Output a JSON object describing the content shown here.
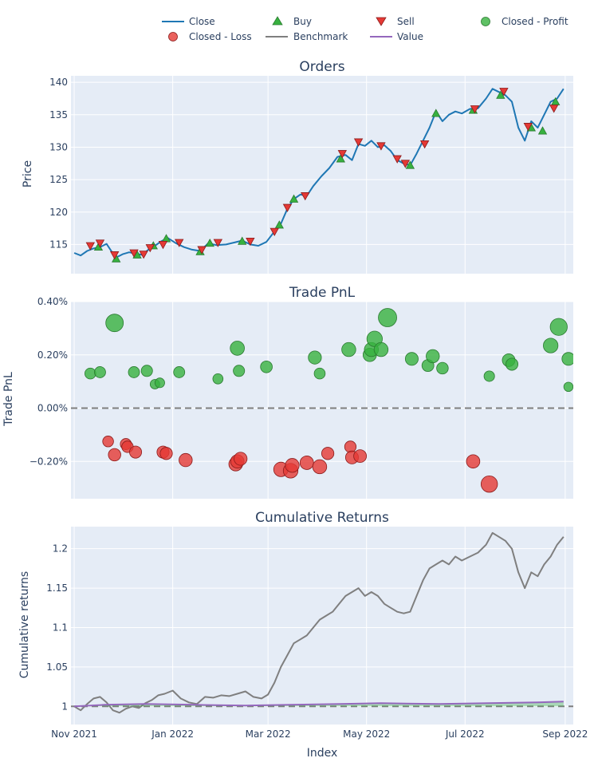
{
  "chart_data": {
    "type": "line",
    "legend": {
      "placement": "top",
      "entries": [
        "Close",
        "Buy",
        "Sell",
        "Closed - Profit",
        "Closed - Loss",
        "Benchmark",
        "Value"
      ]
    },
    "colors": {
      "close": "#1f77b4",
      "buy": "#37b13f",
      "sell": "#e53935",
      "profit": "#37b13f",
      "loss": "#e53935",
      "benchmark": "#7f7f7f",
      "value": "#9467bd",
      "plot_bg": "#e5ecf6",
      "grid": "#ffffff",
      "text": "#2a3f5f"
    },
    "x_axis": {
      "label": "Index",
      "tick_labels": [
        "Nov 2021",
        "Jan 2022",
        "Mar 2022",
        "May 2022",
        "Jul 2022",
        "Sep 2022"
      ],
      "tick_dates": [
        "2021-11-01",
        "2022-01-01",
        "2022-03-01",
        "2022-05-01",
        "2022-07-01",
        "2022-09-01"
      ],
      "range": [
        "2021-10-30",
        "2022-09-06"
      ]
    },
    "panels": [
      {
        "title": "Orders",
        "ylabel": "Price",
        "ylim": [
          110.5,
          141
        ],
        "yticks": [
          115,
          120,
          125,
          130,
          135,
          140
        ],
        "ytick_labels": [
          "115",
          "120",
          "125",
          "130",
          "135",
          "140"
        ],
        "grid": true,
        "close": [
          [
            "2021-11-01",
            113.7
          ],
          [
            "2021-11-05",
            113.3
          ],
          [
            "2021-11-09",
            114.0
          ],
          [
            "2021-11-13",
            114.4
          ],
          [
            "2021-11-17",
            114.6
          ],
          [
            "2021-11-21",
            115.1
          ],
          [
            "2021-11-25",
            113.6
          ],
          [
            "2021-11-27",
            113.0
          ],
          [
            "2021-12-01",
            113.5
          ],
          [
            "2021-12-05",
            113.8
          ],
          [
            "2021-12-09",
            113.6
          ],
          [
            "2021-12-13",
            113.4
          ],
          [
            "2021-12-17",
            114.2
          ],
          [
            "2021-12-21",
            114.8
          ],
          [
            "2021-12-25",
            115.5
          ],
          [
            "2021-12-29",
            116.0
          ],
          [
            "2022-01-03",
            115.2
          ],
          [
            "2022-01-08",
            114.6
          ],
          [
            "2022-01-13",
            114.2
          ],
          [
            "2022-01-18",
            114.0
          ],
          [
            "2022-01-23",
            115.2
          ],
          [
            "2022-01-28",
            114.9
          ],
          [
            "2022-02-03",
            115.0
          ],
          [
            "2022-02-08",
            115.3
          ],
          [
            "2022-02-13",
            115.6
          ],
          [
            "2022-02-18",
            115.0
          ],
          [
            "2022-02-23",
            114.8
          ],
          [
            "2022-02-28",
            115.4
          ],
          [
            "2022-03-05",
            117.0
          ],
          [
            "2022-03-09",
            118.2
          ],
          [
            "2022-03-13",
            120.5
          ],
          [
            "2022-03-17",
            122.0
          ],
          [
            "2022-03-21",
            122.7
          ],
          [
            "2022-03-25",
            122.5
          ],
          [
            "2022-03-29",
            124.0
          ],
          [
            "2022-04-03",
            125.5
          ],
          [
            "2022-04-08",
            126.8
          ],
          [
            "2022-04-13",
            128.5
          ],
          [
            "2022-04-18",
            128.8
          ],
          [
            "2022-04-22",
            128.0
          ],
          [
            "2022-04-26",
            130.5
          ],
          [
            "2022-04-30",
            130.2
          ],
          [
            "2022-05-04",
            131.0
          ],
          [
            "2022-05-08",
            130.0
          ],
          [
            "2022-05-12",
            130.3
          ],
          [
            "2022-05-16",
            129.4
          ],
          [
            "2022-05-20",
            128.0
          ],
          [
            "2022-05-24",
            127.5
          ],
          [
            "2022-05-28",
            127.2
          ],
          [
            "2022-06-01",
            129.0
          ],
          [
            "2022-06-05",
            131.0
          ],
          [
            "2022-06-09",
            133.0
          ],
          [
            "2022-06-13",
            135.5
          ],
          [
            "2022-06-17",
            134.0
          ],
          [
            "2022-06-21",
            135.0
          ],
          [
            "2022-06-25",
            135.5
          ],
          [
            "2022-06-29",
            135.2
          ],
          [
            "2022-07-04",
            135.9
          ],
          [
            "2022-07-09",
            136.0
          ],
          [
            "2022-07-14",
            137.5
          ],
          [
            "2022-07-18",
            139.0
          ],
          [
            "2022-07-22",
            138.5
          ],
          [
            "2022-07-26",
            138.0
          ],
          [
            "2022-07-30",
            137.0
          ],
          [
            "2022-08-03",
            133.0
          ],
          [
            "2022-08-07",
            131.0
          ],
          [
            "2022-08-11",
            134.0
          ],
          [
            "2022-08-15",
            133.0
          ],
          [
            "2022-08-19",
            135.0
          ],
          [
            "2022-08-23",
            137.0
          ],
          [
            "2022-08-27",
            137.5
          ],
          [
            "2022-08-31",
            139.0
          ]
        ],
        "buy": [
          [
            "2021-11-16",
            114.6
          ],
          [
            "2021-11-27",
            112.8
          ],
          [
            "2021-12-10",
            113.4
          ],
          [
            "2021-12-20",
            114.8
          ],
          [
            "2021-12-28",
            115.9
          ],
          [
            "2022-01-18",
            113.9
          ],
          [
            "2022-01-24",
            115.2
          ],
          [
            "2022-02-13",
            115.5
          ],
          [
            "2022-03-08",
            118.0
          ],
          [
            "2022-03-17",
            122.0
          ],
          [
            "2022-04-15",
            128.2
          ],
          [
            "2022-05-28",
            127.2
          ],
          [
            "2022-06-13",
            135.2
          ],
          [
            "2022-07-06",
            135.7
          ],
          [
            "2022-07-23",
            138.0
          ],
          [
            "2022-08-11",
            133.0
          ],
          [
            "2022-08-18",
            132.5
          ],
          [
            "2022-08-26",
            137.0
          ]
        ],
        "sell": [
          [
            "2021-11-11",
            114.8
          ],
          [
            "2021-11-17",
            115.2
          ],
          [
            "2021-11-26",
            113.4
          ],
          [
            "2021-12-08",
            113.7
          ],
          [
            "2021-12-14",
            113.5
          ],
          [
            "2021-12-18",
            114.5
          ],
          [
            "2021-12-26",
            115.0
          ],
          [
            "2022-01-05",
            115.3
          ],
          [
            "2022-01-19",
            114.2
          ],
          [
            "2022-01-29",
            115.3
          ],
          [
            "2022-02-18",
            115.5
          ],
          [
            "2022-03-05",
            117.0
          ],
          [
            "2022-03-13",
            120.7
          ],
          [
            "2022-03-24",
            122.5
          ],
          [
            "2022-04-16",
            129.0
          ],
          [
            "2022-04-26",
            130.8
          ],
          [
            "2022-05-10",
            130.2
          ],
          [
            "2022-05-20",
            128.2
          ],
          [
            "2022-05-25",
            127.5
          ],
          [
            "2022-06-06",
            130.5
          ],
          [
            "2022-07-07",
            135.9
          ],
          [
            "2022-07-25",
            138.6
          ],
          [
            "2022-08-09",
            133.2
          ],
          [
            "2022-08-25",
            136.0
          ]
        ]
      },
      {
        "title": "Trade PnL",
        "ylabel": "Trade PnL",
        "ylim": [
          -0.34,
          0.4
        ],
        "yticks": [
          -0.2,
          0.0,
          0.2,
          0.4
        ],
        "ytick_labels": [
          "−0.20%",
          "0.00%",
          "0.20%",
          "0.40%"
        ],
        "zero_line": true,
        "profit": [
          [
            "2021-11-11",
            0.13
          ],
          [
            "2021-11-17",
            0.135
          ],
          [
            "2021-11-26",
            0.32
          ],
          [
            "2021-12-08",
            0.135
          ],
          [
            "2021-12-16",
            0.14
          ],
          [
            "2021-12-21",
            0.09
          ],
          [
            "2021-12-24",
            0.095
          ],
          [
            "2022-01-05",
            0.135
          ],
          [
            "2022-01-29",
            0.11
          ],
          [
            "2022-02-10",
            0.225
          ],
          [
            "2022-02-11",
            0.14
          ],
          [
            "2022-02-28",
            0.155
          ],
          [
            "2022-03-30",
            0.19
          ],
          [
            "2022-04-02",
            0.13
          ],
          [
            "2022-04-20",
            0.22
          ],
          [
            "2022-05-03",
            0.2
          ],
          [
            "2022-05-04",
            0.22
          ],
          [
            "2022-05-06",
            0.26
          ],
          [
            "2022-05-10",
            0.22
          ],
          [
            "2022-05-14",
            0.34
          ],
          [
            "2022-05-29",
            0.185
          ],
          [
            "2022-06-08",
            0.16
          ],
          [
            "2022-06-11",
            0.195
          ],
          [
            "2022-06-17",
            0.15
          ],
          [
            "2022-07-16",
            0.12
          ],
          [
            "2022-07-28",
            0.18
          ],
          [
            "2022-07-30",
            0.165
          ],
          [
            "2022-08-23",
            0.235
          ],
          [
            "2022-08-28",
            0.305
          ],
          [
            "2022-09-03",
            0.185
          ],
          [
            "2022-09-03",
            0.08
          ]
        ],
        "loss": [
          [
            "2021-11-22",
            -0.125
          ],
          [
            "2021-11-26",
            -0.175
          ],
          [
            "2021-12-03",
            -0.135
          ],
          [
            "2021-12-04",
            -0.145
          ],
          [
            "2021-12-09",
            -0.165
          ],
          [
            "2021-12-26",
            -0.165
          ],
          [
            "2021-12-28",
            -0.17
          ],
          [
            "2022-01-09",
            -0.195
          ],
          [
            "2022-02-09",
            -0.21
          ],
          [
            "2022-02-10",
            -0.2
          ],
          [
            "2022-02-12",
            -0.19
          ],
          [
            "2022-03-09",
            -0.23
          ],
          [
            "2022-03-15",
            -0.235
          ],
          [
            "2022-03-16",
            -0.215
          ],
          [
            "2022-03-25",
            -0.205
          ],
          [
            "2022-04-02",
            -0.22
          ],
          [
            "2022-04-07",
            -0.17
          ],
          [
            "2022-04-21",
            -0.145
          ],
          [
            "2022-04-22",
            -0.185
          ],
          [
            "2022-04-27",
            -0.18
          ],
          [
            "2022-07-06",
            -0.2
          ],
          [
            "2022-07-16",
            -0.285
          ]
        ]
      },
      {
        "title": "Cumulative Returns",
        "ylabel": "Cumulative returns",
        "ylim": [
          0.977,
          1.228
        ],
        "yticks": [
          1.0,
          1.05,
          1.1,
          1.15,
          1.2
        ],
        "ytick_labels": [
          "1",
          "1.05",
          "1.1",
          "1.15",
          "1.2"
        ],
        "baseline": 1.0,
        "benchmark": [
          [
            "2021-11-01",
            1.0
          ],
          [
            "2021-11-05",
            0.995
          ],
          [
            "2021-11-09",
            1.003
          ],
          [
            "2021-11-13",
            1.01
          ],
          [
            "2021-11-17",
            1.012
          ],
          [
            "2021-11-21",
            1.005
          ],
          [
            "2021-11-25",
            0.995
          ],
          [
            "2021-11-29",
            0.992
          ],
          [
            "2021-12-03",
            0.997
          ],
          [
            "2021-12-07",
            1.0
          ],
          [
            "2021-12-11",
            0.998
          ],
          [
            "2021-12-15",
            1.004
          ],
          [
            "2021-12-19",
            1.008
          ],
          [
            "2021-12-23",
            1.014
          ],
          [
            "2021-12-27",
            1.016
          ],
          [
            "2022-01-01",
            1.02
          ],
          [
            "2022-01-06",
            1.01
          ],
          [
            "2022-01-11",
            1.005
          ],
          [
            "2022-01-16",
            1.003
          ],
          [
            "2022-01-21",
            1.012
          ],
          [
            "2022-01-26",
            1.011
          ],
          [
            "2022-01-31",
            1.014
          ],
          [
            "2022-02-05",
            1.013
          ],
          [
            "2022-02-10",
            1.016
          ],
          [
            "2022-02-15",
            1.019
          ],
          [
            "2022-02-20",
            1.012
          ],
          [
            "2022-02-25",
            1.01
          ],
          [
            "2022-03-01",
            1.015
          ],
          [
            "2022-03-05",
            1.03
          ],
          [
            "2022-03-09",
            1.05
          ],
          [
            "2022-03-13",
            1.065
          ],
          [
            "2022-03-17",
            1.08
          ],
          [
            "2022-03-21",
            1.085
          ],
          [
            "2022-03-25",
            1.09
          ],
          [
            "2022-03-29",
            1.1
          ],
          [
            "2022-04-02",
            1.11
          ],
          [
            "2022-04-06",
            1.115
          ],
          [
            "2022-04-10",
            1.12
          ],
          [
            "2022-04-14",
            1.13
          ],
          [
            "2022-04-18",
            1.14
          ],
          [
            "2022-04-22",
            1.145
          ],
          [
            "2022-04-26",
            1.15
          ],
          [
            "2022-04-30",
            1.14
          ],
          [
            "2022-05-04",
            1.145
          ],
          [
            "2022-05-08",
            1.14
          ],
          [
            "2022-05-12",
            1.13
          ],
          [
            "2022-05-16",
            1.125
          ],
          [
            "2022-05-20",
            1.12
          ],
          [
            "2022-05-24",
            1.118
          ],
          [
            "2022-05-28",
            1.12
          ],
          [
            "2022-06-01",
            1.14
          ],
          [
            "2022-06-05",
            1.16
          ],
          [
            "2022-06-09",
            1.175
          ],
          [
            "2022-06-13",
            1.18
          ],
          [
            "2022-06-17",
            1.185
          ],
          [
            "2022-06-21",
            1.18
          ],
          [
            "2022-06-25",
            1.19
          ],
          [
            "2022-06-29",
            1.185
          ],
          [
            "2022-07-04",
            1.19
          ],
          [
            "2022-07-09",
            1.195
          ],
          [
            "2022-07-14",
            1.205
          ],
          [
            "2022-07-18",
            1.22
          ],
          [
            "2022-07-22",
            1.215
          ],
          [
            "2022-07-26",
            1.21
          ],
          [
            "2022-07-30",
            1.2
          ],
          [
            "2022-08-03",
            1.17
          ],
          [
            "2022-08-07",
            1.15
          ],
          [
            "2022-08-11",
            1.17
          ],
          [
            "2022-08-15",
            1.165
          ],
          [
            "2022-08-19",
            1.18
          ],
          [
            "2022-08-23",
            1.19
          ],
          [
            "2022-08-27",
            1.205
          ],
          [
            "2022-08-31",
            1.215
          ]
        ],
        "value": [
          [
            "2021-11-01",
            1.0
          ],
          [
            "2021-11-20",
            1.002
          ],
          [
            "2021-12-15",
            1.003
          ],
          [
            "2022-01-15",
            1.002
          ],
          [
            "2022-02-15",
            1.001
          ],
          [
            "2022-03-15",
            1.002
          ],
          [
            "2022-04-15",
            1.003
          ],
          [
            "2022-05-10",
            1.004
          ],
          [
            "2022-06-15",
            1.003
          ],
          [
            "2022-07-15",
            1.004
          ],
          [
            "2022-08-15",
            1.005
          ],
          [
            "2022-08-31",
            1.006
          ]
        ]
      }
    ]
  }
}
